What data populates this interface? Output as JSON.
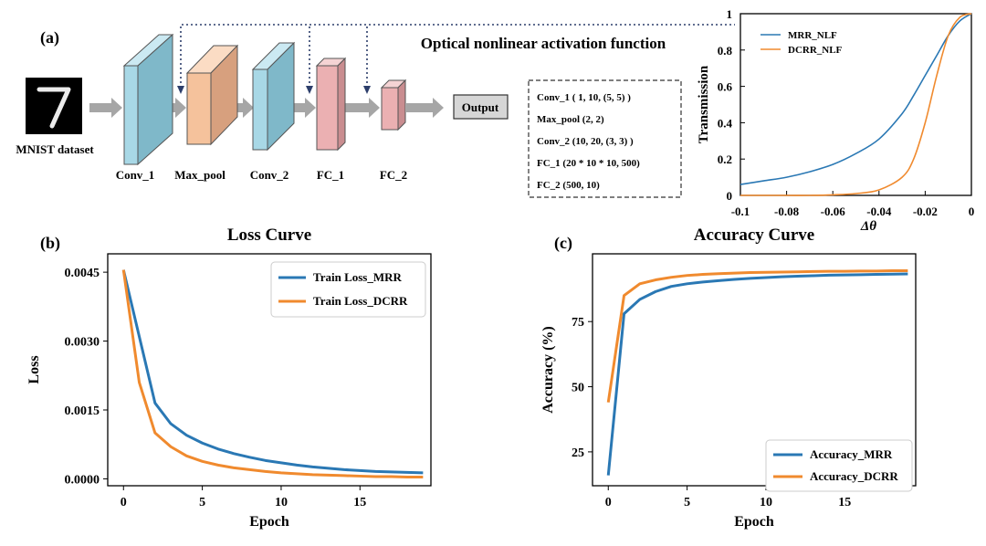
{
  "panel_a": {
    "label": "(a)",
    "annotation": "Optical nonlinear activation function",
    "input_label": "MNIST dataset",
    "output_label": "Output",
    "layers": [
      "Conv_1",
      "Max_pool",
      "Conv_2",
      "FC_1",
      "FC_2"
    ],
    "config": [
      "Conv_1 ( 1, 10, (5, 5) )",
      "Max_pool (2, 2)",
      "Conv_2 (10, 20, (3, 3) )",
      "FC_1 (20 * 10 * 10, 500)",
      "FC_2 (500, 10)"
    ]
  },
  "panel_b": {
    "label": "(b)"
  },
  "panel_c": {
    "label": "(c)"
  },
  "colors": {
    "blue": "#2a78b4",
    "orange": "#f08a2e",
    "conv": "#a8d8e6",
    "pool": "#f5c29c",
    "fc": "#ebb0b2"
  },
  "chart_data": [
    {
      "id": "transmission",
      "type": "line",
      "title": "",
      "xlabel": "Δθ",
      "ylabel": "Transmission",
      "xlim": [
        -0.1,
        0
      ],
      "ylim": [
        0,
        1
      ],
      "xticks": [
        "-0.1",
        "-0.08",
        "-0.06",
        "-0.04",
        "-0.02",
        "0"
      ],
      "yticks": [
        "0",
        "0.2",
        "0.4",
        "0.6",
        "0.8",
        "1"
      ],
      "legend": "top-left",
      "x": [
        -0.1,
        -0.09,
        -0.08,
        -0.07,
        -0.06,
        -0.05,
        -0.04,
        -0.03,
        -0.025,
        -0.02,
        -0.015,
        -0.01,
        -0.005,
        0
      ],
      "series": [
        {
          "name": "MRR_NLF",
          "color": "#2a78b4",
          "values": [
            0.06,
            0.08,
            0.1,
            0.13,
            0.17,
            0.23,
            0.31,
            0.45,
            0.55,
            0.66,
            0.77,
            0.88,
            0.96,
            1.0
          ]
        },
        {
          "name": "DCRR_NLF",
          "color": "#f08a2e",
          "values": [
            0.0,
            0.0,
            0.0,
            0.0,
            0.003,
            0.01,
            0.03,
            0.1,
            0.2,
            0.4,
            0.66,
            0.88,
            0.98,
            1.0
          ]
        }
      ]
    },
    {
      "id": "loss",
      "type": "line",
      "title": "Loss Curve",
      "xlabel": "Epoch",
      "ylabel": "Loss",
      "xlim": [
        -1,
        19.5
      ],
      "ylim": [
        -0.00015,
        0.0049
      ],
      "xticks": [
        "0",
        "5",
        "10",
        "15"
      ],
      "yticks": [
        "0.0000",
        "0.0015",
        "0.0030",
        "0.0045"
      ],
      "legend": "top-right",
      "x": [
        0,
        1,
        2,
        3,
        4,
        5,
        6,
        7,
        8,
        9,
        10,
        11,
        12,
        13,
        14,
        15,
        16,
        17,
        18,
        19
      ],
      "series": [
        {
          "name": "Train Loss_MRR",
          "color": "#2a78b4",
          "values": [
            0.00455,
            0.0031,
            0.00165,
            0.0012,
            0.00095,
            0.00078,
            0.00065,
            0.00055,
            0.00047,
            0.0004,
            0.00035,
            0.0003,
            0.00026,
            0.00023,
            0.0002,
            0.00018,
            0.00016,
            0.00015,
            0.00014,
            0.00013
          ]
        },
        {
          "name": "Train Loss_DCRR",
          "color": "#f08a2e",
          "values": [
            0.00455,
            0.0021,
            0.001,
            0.0007,
            0.0005,
            0.00038,
            0.0003,
            0.00024,
            0.0002,
            0.00016,
            0.00013,
            0.00011,
            9e-05,
            8e-05,
            7e-05,
            6e-05,
            5e-05,
            5e-05,
            4e-05,
            4e-05
          ]
        }
      ]
    },
    {
      "id": "accuracy",
      "type": "line",
      "title": "Accuracy Curve",
      "xlabel": "Epoch",
      "ylabel": "Accuracy (%)",
      "xlim": [
        -1,
        19.5
      ],
      "ylim": [
        12,
        101
      ],
      "xticks": [
        "0",
        "5",
        "10",
        "15"
      ],
      "yticks": [
        "25",
        "50",
        "75"
      ],
      "legend": "bottom-right",
      "x": [
        0,
        1,
        2,
        3,
        4,
        5,
        6,
        7,
        8,
        9,
        10,
        11,
        12,
        13,
        14,
        15,
        16,
        17,
        18,
        19
      ],
      "series": [
        {
          "name": "Accuracy_MRR",
          "color": "#2a78b4",
          "values": [
            16,
            78,
            83.5,
            86.5,
            88.5,
            89.5,
            90.2,
            90.7,
            91.2,
            91.6,
            91.9,
            92.2,
            92.4,
            92.6,
            92.8,
            92.9,
            93,
            93.1,
            93.2,
            93.3
          ]
        },
        {
          "name": "Accuracy_DCRR",
          "color": "#f08a2e",
          "values": [
            44,
            85,
            89.5,
            91,
            92,
            92.7,
            93.1,
            93.4,
            93.6,
            93.8,
            93.9,
            94,
            94.1,
            94.2,
            94.3,
            94.3,
            94.4,
            94.4,
            94.5,
            94.5
          ]
        }
      ]
    }
  ]
}
